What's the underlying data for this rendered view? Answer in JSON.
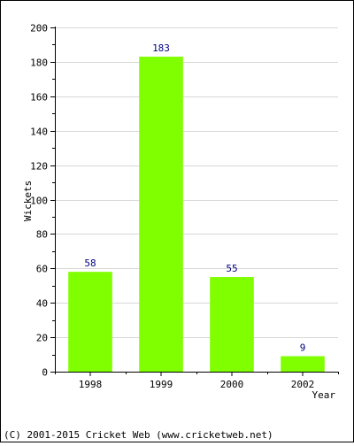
{
  "chart_data": {
    "type": "bar",
    "categories": [
      "1998",
      "1999",
      "2000",
      "2002"
    ],
    "values": [
      58,
      183,
      55,
      9
    ],
    "data_labels": [
      "58",
      "183",
      "55",
      "9"
    ],
    "xlabel": "Year",
    "ylabel": "Wickets",
    "ylim": [
      0,
      200
    ],
    "yticks": [
      "0",
      "20",
      "40",
      "60",
      "80",
      "100",
      "120",
      "140",
      "160",
      "180",
      "200"
    ],
    "grid": true,
    "legend": "none"
  },
  "footer": {
    "copyright": "(C) 2001-2015 Cricket Web (www.cricketweb.net)"
  },
  "colors": {
    "bar": "#80ff00",
    "data_label": "#000080",
    "text": "#000000",
    "grid": "#d8d8d8"
  }
}
